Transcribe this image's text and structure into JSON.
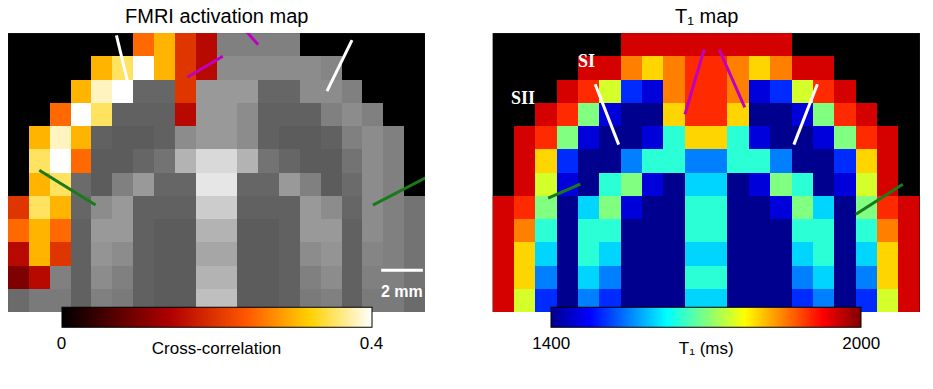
{
  "chart_data": [
    {
      "type": "heatmap",
      "title": "FMRI activation map",
      "tick_labels": false,
      "anatomy": {
        "zlim": [
          0,
          100
        ],
        "cells": [
          [
            null,
            null,
            null,
            null,
            null,
            null,
            50,
            50,
            50,
            50,
            50,
            50,
            50,
            50,
            null,
            null,
            null,
            null,
            null,
            null
          ],
          [
            null,
            null,
            null,
            null,
            52,
            55,
            55,
            55,
            60,
            60,
            55,
            55,
            55,
            55,
            55,
            52,
            null,
            null,
            null,
            null
          ],
          [
            null,
            null,
            null,
            50,
            55,
            55,
            40,
            40,
            60,
            60,
            60,
            60,
            40,
            40,
            55,
            55,
            50,
            null,
            null,
            null
          ],
          [
            null,
            null,
            50,
            55,
            50,
            38,
            38,
            38,
            55,
            60,
            60,
            55,
            38,
            38,
            38,
            50,
            55,
            50,
            null,
            null
          ],
          [
            null,
            50,
            55,
            50,
            38,
            36,
            36,
            38,
            55,
            60,
            60,
            55,
            38,
            36,
            36,
            38,
            50,
            55,
            50,
            null
          ],
          [
            null,
            50,
            55,
            45,
            36,
            36,
            40,
            45,
            70,
            85,
            85,
            70,
            45,
            40,
            36,
            36,
            45,
            55,
            50,
            null
          ],
          [
            null,
            50,
            55,
            42,
            36,
            50,
            60,
            40,
            40,
            90,
            90,
            40,
            40,
            60,
            50,
            36,
            42,
            55,
            50,
            null
          ],
          [
            45,
            50,
            55,
            40,
            55,
            60,
            38,
            38,
            38,
            80,
            80,
            38,
            38,
            38,
            60,
            55,
            40,
            55,
            50,
            45
          ],
          [
            45,
            50,
            55,
            38,
            60,
            60,
            38,
            36,
            36,
            70,
            70,
            36,
            36,
            38,
            60,
            60,
            38,
            55,
            50,
            45
          ],
          [
            45,
            50,
            52,
            38,
            58,
            55,
            38,
            36,
            36,
            65,
            65,
            36,
            36,
            38,
            55,
            58,
            38,
            52,
            50,
            45
          ],
          [
            45,
            50,
            50,
            38,
            55,
            50,
            38,
            36,
            36,
            70,
            70,
            36,
            36,
            38,
            50,
            55,
            38,
            50,
            50,
            45
          ],
          [
            42,
            48,
            48,
            38,
            50,
            48,
            38,
            36,
            36,
            75,
            75,
            36,
            36,
            38,
            48,
            50,
            38,
            48,
            48,
            42
          ]
        ]
      },
      "cells": [
        [
          null,
          null,
          null,
          null,
          null,
          null,
          0.25,
          0.3,
          0.2,
          0.15,
          null,
          null,
          null,
          null,
          null,
          null,
          null,
          null,
          null,
          null
        ],
        [
          null,
          null,
          null,
          null,
          0.3,
          0.35,
          0.4,
          0.3,
          0.2,
          0.15,
          null,
          null,
          null,
          null,
          null,
          null,
          null,
          null,
          null,
          null
        ],
        [
          null,
          null,
          null,
          0.3,
          0.38,
          0.4,
          null,
          null,
          0.2,
          null,
          null,
          null,
          null,
          null,
          null,
          null,
          null,
          null,
          null,
          null
        ],
        [
          null,
          null,
          0.25,
          0.4,
          0.35,
          null,
          null,
          null,
          0.15,
          null,
          null,
          null,
          null,
          null,
          null,
          null,
          null,
          null,
          null,
          null
        ],
        [
          null,
          0.3,
          0.38,
          0.3,
          null,
          null,
          null,
          null,
          null,
          null,
          null,
          null,
          null,
          null,
          null,
          null,
          null,
          null,
          null,
          null
        ],
        [
          null,
          0.35,
          0.4,
          0.25,
          null,
          null,
          null,
          null,
          null,
          null,
          null,
          null,
          null,
          null,
          null,
          null,
          null,
          null,
          null,
          null
        ],
        [
          null,
          0.3,
          0.35,
          null,
          null,
          null,
          null,
          null,
          null,
          null,
          null,
          null,
          null,
          null,
          null,
          null,
          null,
          null,
          null,
          null
        ],
        [
          0.2,
          0.35,
          0.3,
          null,
          null,
          null,
          null,
          null,
          null,
          null,
          null,
          null,
          null,
          null,
          null,
          null,
          null,
          null,
          null,
          null
        ],
        [
          0.25,
          0.3,
          0.25,
          null,
          null,
          null,
          null,
          null,
          null,
          null,
          null,
          null,
          null,
          null,
          null,
          null,
          null,
          null,
          null,
          null
        ],
        [
          0.15,
          0.3,
          0.2,
          null,
          null,
          null,
          null,
          null,
          null,
          null,
          null,
          null,
          null,
          null,
          null,
          null,
          null,
          null,
          null,
          null
        ],
        [
          0.1,
          0.15,
          null,
          null,
          null,
          null,
          null,
          null,
          null,
          null,
          null,
          null,
          null,
          null,
          null,
          null,
          null,
          null,
          null,
          null
        ],
        [
          null,
          null,
          null,
          null,
          null,
          null,
          null,
          null,
          null,
          null,
          null,
          null,
          null,
          null,
          null,
          null,
          null,
          null,
          null,
          null
        ]
      ],
      "colorbar": {
        "title": "Cross-correlation",
        "zlim": [
          0,
          0.4
        ],
        "ticks": [
          0,
          0.4
        ]
      },
      "annotations": [
        "2 mm"
      ]
    },
    {
      "type": "heatmap",
      "title": "T₁ map",
      "tick_labels": false,
      "cells": [
        [
          null,
          null,
          null,
          null,
          null,
          null,
          1950,
          1950,
          1950,
          1950,
          1950,
          1950,
          1950,
          1950,
          null,
          null,
          null,
          null,
          null,
          null
        ],
        [
          null,
          null,
          null,
          null,
          1950,
          1950,
          1850,
          1800,
          1850,
          1900,
          1900,
          1850,
          1800,
          1850,
          1950,
          1950,
          null,
          null,
          null,
          null
        ],
        [
          null,
          null,
          null,
          1950,
          1900,
          1750,
          1500,
          1450,
          1850,
          1900,
          1900,
          1850,
          1450,
          1500,
          1750,
          1900,
          1950,
          null,
          null,
          null
        ],
        [
          null,
          null,
          1950,
          1900,
          1700,
          1450,
          1400,
          1400,
          1800,
          1900,
          1900,
          1800,
          1400,
          1400,
          1450,
          1700,
          1900,
          1950,
          null,
          null
        ],
        [
          null,
          1950,
          1900,
          1700,
          1450,
          1400,
          1400,
          1450,
          1650,
          1800,
          1800,
          1650,
          1450,
          1400,
          1400,
          1450,
          1700,
          1900,
          1950,
          null
        ],
        [
          null,
          1950,
          1800,
          1500,
          1400,
          1400,
          1550,
          1650,
          1650,
          1550,
          1550,
          1650,
          1650,
          1550,
          1400,
          1400,
          1500,
          1800,
          1950,
          null
        ],
        [
          null,
          1950,
          1750,
          1450,
          1400,
          1650,
          1700,
          1450,
          1400,
          1600,
          1600,
          1400,
          1450,
          1700,
          1650,
          1400,
          1450,
          1750,
          1950,
          null
        ],
        [
          1950,
          1900,
          1700,
          1400,
          1600,
          1700,
          1450,
          1400,
          1400,
          1650,
          1650,
          1400,
          1400,
          1450,
          1700,
          1600,
          1400,
          1700,
          1900,
          1950
        ],
        [
          1950,
          1850,
          1650,
          1400,
          1650,
          1650,
          1400,
          1400,
          1400,
          1650,
          1650,
          1400,
          1400,
          1400,
          1650,
          1650,
          1400,
          1650,
          1850,
          1950
        ],
        [
          1950,
          1800,
          1600,
          1400,
          1650,
          1600,
          1400,
          1400,
          1400,
          1600,
          1600,
          1400,
          1400,
          1400,
          1600,
          1650,
          1400,
          1600,
          1800,
          1950
        ],
        [
          1950,
          1800,
          1550,
          1400,
          1600,
          1550,
          1400,
          1400,
          1400,
          1650,
          1650,
          1400,
          1400,
          1400,
          1550,
          1600,
          1400,
          1550,
          1800,
          1950
        ],
        [
          1950,
          1750,
          1500,
          1400,
          1550,
          1500,
          1400,
          1400,
          1400,
          1600,
          1600,
          1400,
          1400,
          1400,
          1500,
          1550,
          1400,
          1500,
          1750,
          1950
        ]
      ],
      "colorbar": {
        "title": "T₁ (ms)",
        "zlim": [
          1400,
          2000
        ],
        "ticks": [
          1400,
          2000
        ]
      },
      "annotations": [
        "SI",
        "SII"
      ]
    }
  ]
}
